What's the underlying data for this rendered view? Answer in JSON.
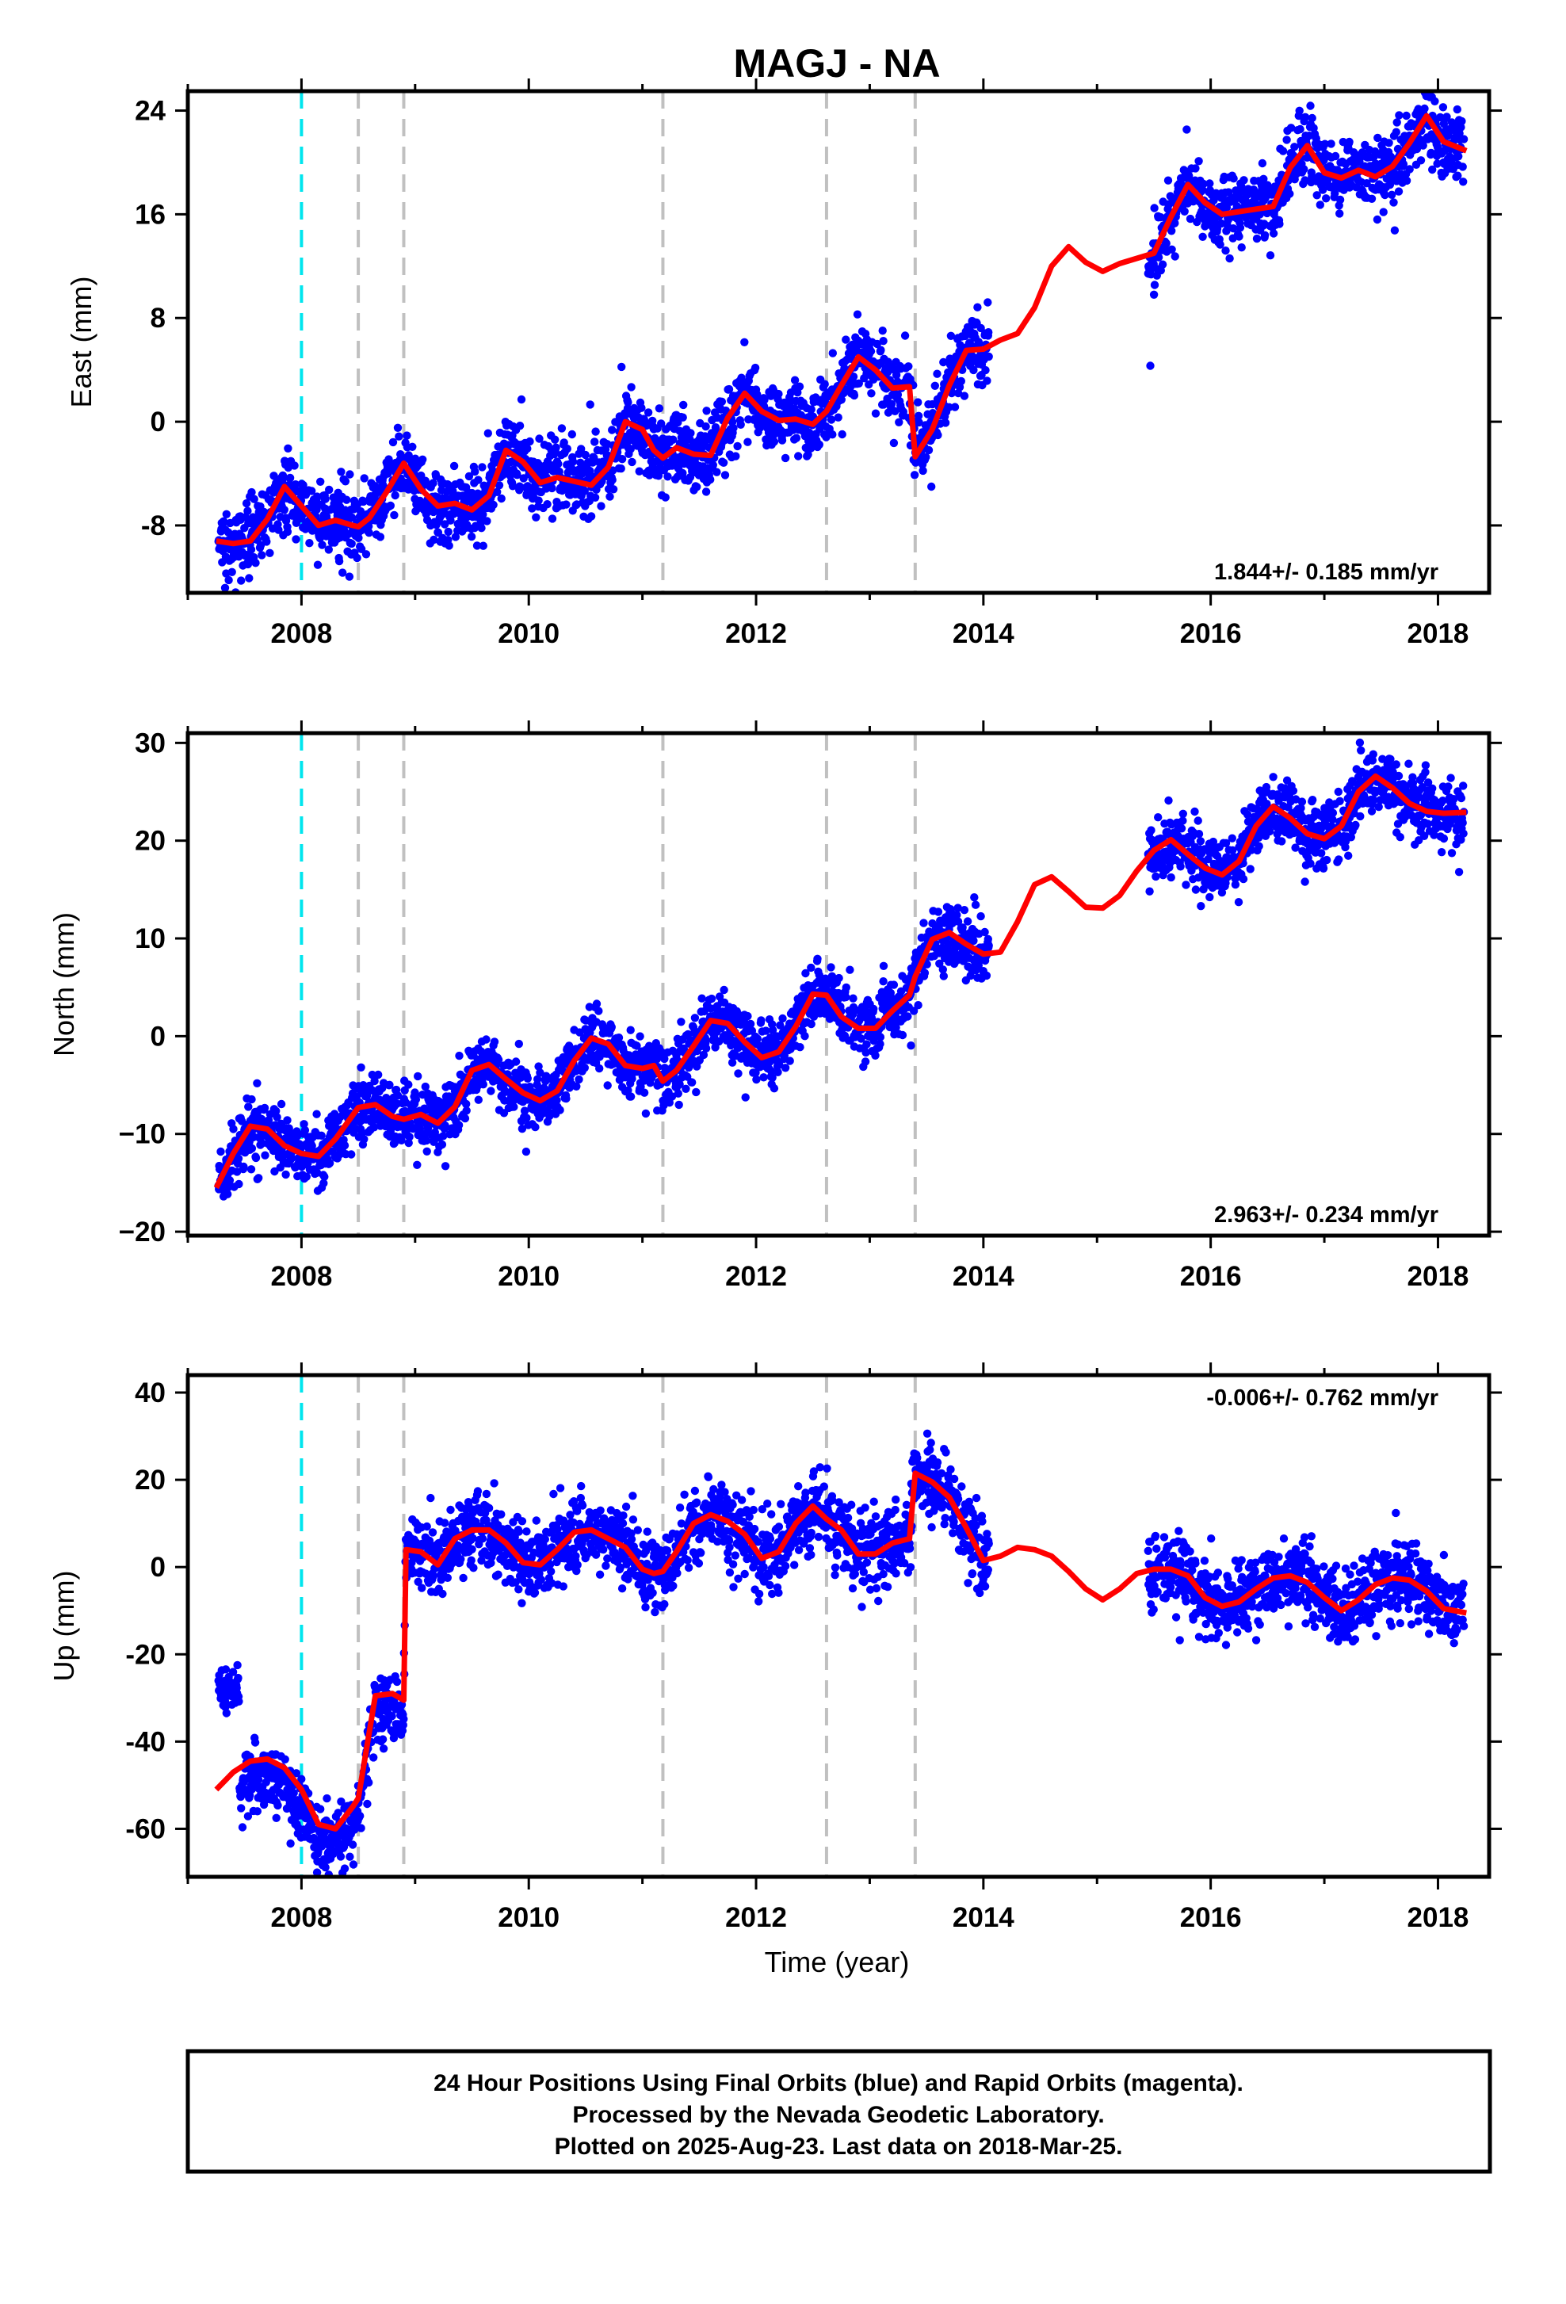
{
  "title": "MAGJ - NA",
  "footer": {
    "lines": [
      "24 Hour Positions Using Final Orbits (blue) and Rapid Orbits (magenta).",
      "Processed by the Nevada Geodetic Laboratory.",
      "Plotted on 2025-Aug-23. Last data on 2018-Mar-25."
    ]
  },
  "colors": {
    "observations": "#0000ff",
    "model": "#ff0000",
    "equipment_change": "#00e5ee",
    "offset_event": "#c0c0c0"
  },
  "chart_data": [
    {
      "type": "scatter",
      "component": "east",
      "ylabel": "East (mm)",
      "xlabel": "",
      "xlim": [
        2007.0,
        2018.45
      ],
      "ylim": [
        -13.2,
        25.5
      ],
      "x_ticks": [
        2008,
        2010,
        2012,
        2014,
        2016,
        2018
      ],
      "y_ticks": [
        -8,
        0,
        8,
        16,
        24
      ],
      "y_tick_labels": [
        "-8",
        "0",
        "8",
        "16",
        "24"
      ],
      "rate_text": "1.844+/- 0.185 mm/yr",
      "rate_position": "bottom-right",
      "vertical_lines_cyan": [
        2008.0
      ],
      "vertical_lines_gray": [
        2008.5,
        2008.9,
        2011.18,
        2012.62,
        2013.4
      ],
      "model": {
        "x": [
          2007.25,
          2007.4,
          2007.55,
          2007.7,
          2007.85,
          2008.0,
          2008.15,
          2008.3,
          2008.45,
          2008.5,
          2008.6,
          2008.75,
          2008.9,
          2009.05,
          2009.2,
          2009.35,
          2009.5,
          2009.65,
          2009.8,
          2009.95,
          2010.1,
          2010.25,
          2010.4,
          2010.55,
          2010.7,
          2010.85,
          2011.0,
          2011.1,
          2011.18,
          2011.3,
          2011.45,
          2011.6,
          2011.75,
          2011.9,
          2012.05,
          2012.2,
          2012.35,
          2012.5,
          2012.62,
          2012.75,
          2012.9,
          2013.05,
          2013.2,
          2013.35,
          2013.4,
          2013.55,
          2013.7,
          2013.85,
          2014.0,
          2014.15,
          2014.3,
          2014.45,
          2014.6,
          2014.75,
          2014.9,
          2015.05,
          2015.2,
          2015.35,
          2015.5,
          2015.65,
          2015.8,
          2015.95,
          2016.1,
          2016.25,
          2016.4,
          2016.55,
          2016.7,
          2016.85,
          2017.0,
          2017.15,
          2017.3,
          2017.45,
          2017.6,
          2017.75,
          2017.9,
          2018.05,
          2018.25
        ],
        "y": [
          -9.2,
          -9.4,
          -9.2,
          -7.5,
          -5.0,
          -6.5,
          -8.0,
          -7.6,
          -8.0,
          -8.1,
          -7.4,
          -5.4,
          -3.2,
          -5.2,
          -6.5,
          -6.3,
          -6.8,
          -5.7,
          -2.2,
          -3.1,
          -4.7,
          -4.3,
          -4.6,
          -4.9,
          -3.5,
          0.0,
          -0.6,
          -2.2,
          -2.8,
          -2.0,
          -2.5,
          -2.6,
          0.3,
          2.2,
          0.8,
          0.1,
          0.2,
          -0.2,
          0.8,
          2.8,
          5.0,
          4.0,
          2.6,
          2.7,
          -2.7,
          -0.6,
          2.8,
          5.5,
          5.6,
          6.3,
          6.8,
          8.8,
          12.0,
          13.5,
          12.3,
          11.6,
          12.2,
          12.6,
          13.0,
          15.8,
          18.3,
          16.9,
          16.0,
          16.2,
          16.4,
          16.6,
          19.6,
          21.3,
          19.2,
          18.8,
          19.4,
          18.9,
          19.7,
          21.5,
          23.6,
          21.6,
          20.9
        ]
      },
      "observations_summary": "Daily solutions 2007.27–2014.05 and 2015.45–2018.23 (gap 2014.05–2015.45)."
    },
    {
      "type": "scatter",
      "component": "north",
      "ylabel": "North (mm)",
      "xlabel": "",
      "xlim": [
        2007.0,
        2018.45
      ],
      "ylim": [
        -20.4,
        31.0
      ],
      "x_ticks": [
        2008,
        2010,
        2012,
        2014,
        2016,
        2018
      ],
      "y_ticks": [
        -20,
        -10,
        0,
        10,
        20,
        30
      ],
      "y_tick_labels": [
        "−20",
        "−10",
        "0",
        "10",
        "20",
        "30"
      ],
      "rate_text": "2.963+/- 0.234 mm/yr",
      "rate_position": "bottom-right",
      "vertical_lines_cyan": [
        2008.0
      ],
      "vertical_lines_gray": [
        2008.5,
        2008.9,
        2011.18,
        2012.62,
        2013.4
      ],
      "model": {
        "x": [
          2007.25,
          2007.4,
          2007.55,
          2007.7,
          2007.85,
          2008.0,
          2008.15,
          2008.3,
          2008.5,
          2008.65,
          2008.8,
          2008.9,
          2009.05,
          2009.2,
          2009.35,
          2009.5,
          2009.65,
          2009.8,
          2009.95,
          2010.1,
          2010.25,
          2010.4,
          2010.55,
          2010.7,
          2010.85,
          2011.0,
          2011.1,
          2011.18,
          2011.3,
          2011.45,
          2011.6,
          2011.75,
          2011.9,
          2012.05,
          2012.2,
          2012.35,
          2012.5,
          2012.62,
          2012.75,
          2012.9,
          2013.05,
          2013.2,
          2013.35,
          2013.4,
          2013.55,
          2013.7,
          2013.85,
          2014.0,
          2014.15,
          2014.3,
          2014.45,
          2014.6,
          2014.75,
          2014.9,
          2015.05,
          2015.2,
          2015.35,
          2015.5,
          2015.65,
          2015.8,
          2015.95,
          2016.1,
          2016.25,
          2016.4,
          2016.55,
          2016.7,
          2016.85,
          2017.0,
          2017.15,
          2017.3,
          2017.45,
          2017.6,
          2017.75,
          2017.9,
          2018.05,
          2018.25
        ],
        "y": [
          -15.5,
          -12.0,
          -9.2,
          -9.5,
          -11.2,
          -12.0,
          -12.3,
          -10.5,
          -7.3,
          -7.0,
          -8.2,
          -8.5,
          -8.0,
          -8.9,
          -7.2,
          -3.5,
          -2.9,
          -4.4,
          -5.8,
          -6.6,
          -5.6,
          -2.5,
          -0.2,
          -0.8,
          -3.0,
          -3.3,
          -3.0,
          -4.6,
          -3.5,
          -1.0,
          1.6,
          1.3,
          -0.6,
          -2.2,
          -1.6,
          1.0,
          4.3,
          4.2,
          2.0,
          0.8,
          0.8,
          2.6,
          4.2,
          6.1,
          9.9,
          10.6,
          9.4,
          8.4,
          8.6,
          11.7,
          15.5,
          16.3,
          14.8,
          13.2,
          13.1,
          14.4,
          16.9,
          19.0,
          20.1,
          18.6,
          17.2,
          16.5,
          17.9,
          21.5,
          23.5,
          22.3,
          20.7,
          20.2,
          21.5,
          25.0,
          26.6,
          25.4,
          23.8,
          23.0,
          22.8,
          22.9
        ]
      },
      "observations_summary": "Daily solutions 2007.27–2014.05 and 2015.45–2018.23 (gap 2014.05–2015.45)."
    },
    {
      "type": "scatter",
      "component": "up",
      "ylabel": "Up (mm)",
      "xlabel": "Time (year)",
      "xlim": [
        2007.0,
        2018.45
      ],
      "ylim": [
        -71.0,
        44.0
      ],
      "x_ticks": [
        2008,
        2010,
        2012,
        2014,
        2016,
        2018
      ],
      "y_ticks": [
        -60,
        -40,
        -20,
        0,
        20,
        40
      ],
      "y_tick_labels": [
        "-60",
        "-40",
        "-20",
        "0",
        "20",
        "40"
      ],
      "rate_text": "-0.006+/- 0.762 mm/yr",
      "rate_position": "top-right",
      "vertical_lines_cyan": [
        2008.0
      ],
      "vertical_lines_gray": [
        2008.5,
        2008.9,
        2011.18,
        2012.62,
        2013.4
      ],
      "model": {
        "x": [
          2007.25,
          2007.4,
          2007.55,
          2007.7,
          2007.85,
          2008.0,
          2008.15,
          2008.3,
          2008.45,
          2008.5,
          2008.65,
          2008.8,
          2008.9,
          2008.92,
          2009.05,
          2009.2,
          2009.35,
          2009.5,
          2009.65,
          2009.8,
          2009.95,
          2010.1,
          2010.25,
          2010.4,
          2010.55,
          2010.7,
          2010.85,
          2011.0,
          2011.1,
          2011.18,
          2011.3,
          2011.45,
          2011.6,
          2011.75,
          2011.9,
          2012.05,
          2012.2,
          2012.35,
          2012.5,
          2012.62,
          2012.75,
          2012.9,
          2013.05,
          2013.2,
          2013.35,
          2013.4,
          2013.55,
          2013.7,
          2013.85,
          2014.0,
          2014.15,
          2014.3,
          2014.45,
          2014.6,
          2014.75,
          2014.9,
          2015.05,
          2015.2,
          2015.35,
          2015.5,
          2015.65,
          2015.8,
          2015.95,
          2016.1,
          2016.25,
          2016.4,
          2016.55,
          2016.7,
          2016.85,
          2017.0,
          2017.15,
          2017.3,
          2017.45,
          2017.6,
          2017.75,
          2017.9,
          2018.05,
          2018.25
        ],
        "y": [
          -51.0,
          -47.0,
          -44.5,
          -44.0,
          -46.0,
          -51.0,
          -59.0,
          -60.0,
          -55.0,
          -53.0,
          -29.5,
          -29.0,
          -30.5,
          4.0,
          3.5,
          0.5,
          6.5,
          8.5,
          8.5,
          5.5,
          1.0,
          0.5,
          4.0,
          8.0,
          8.5,
          6.5,
          4.5,
          -0.5,
          -1.5,
          -1.0,
          3.5,
          10.0,
          12.0,
          10.5,
          7.5,
          2.0,
          3.5,
          10.0,
          14.0,
          11.0,
          8.5,
          3.0,
          3.0,
          5.5,
          6.5,
          21.5,
          19.5,
          16.0,
          9.0,
          1.5,
          2.5,
          4.5,
          4.0,
          2.5,
          -1.0,
          -5.0,
          -7.5,
          -5.0,
          -1.5,
          -0.5,
          -0.5,
          -2.0,
          -7.0,
          -9.0,
          -8.0,
          -5.0,
          -2.5,
          -2.0,
          -3.5,
          -7.0,
          -10.0,
          -7.5,
          -4.0,
          -2.5,
          -3.0,
          -5.5,
          -9.5,
          -10.5
        ]
      },
      "observations_summary": "Daily solutions 2007.27–2014.05 and 2015.45–2018.23 (gap 2014.05–2015.45)."
    }
  ]
}
